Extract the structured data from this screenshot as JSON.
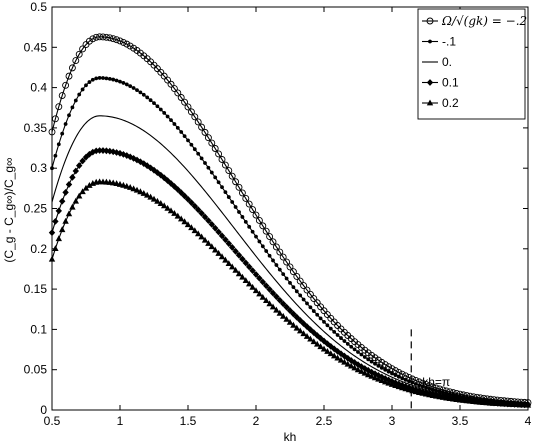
{
  "chart_data": {
    "type": "line",
    "xlabel": "kh",
    "ylabel": "(C_g - C_g∞)/C_g∞",
    "xlim": [
      0.5,
      4
    ],
    "ylim": [
      0,
      0.5
    ],
    "x_ticks": [
      "0.5",
      "1",
      "1.5",
      "2",
      "2.5",
      "3",
      "3.5",
      "4"
    ],
    "y_ticks": [
      "0",
      "0.05",
      "0.1",
      "0.15",
      "0.2",
      "0.25",
      "0.3",
      "0.35",
      "0.4",
      "0.45",
      "0.5"
    ],
    "grid": false,
    "legend_position": "top-right",
    "series": [
      {
        "name": "Ω/√(gk) = −.2",
        "marker": "circle",
        "omega": -0.2,
        "start": 0.345,
        "peak": 0.463,
        "end": 0.006
      },
      {
        "name": "-.1",
        "marker": "dot",
        "omega": -0.1,
        "start": 0.3,
        "peak": 0.412,
        "end": 0.005
      },
      {
        "name": "0.",
        "marker": "none",
        "omega": 0,
        "start": 0.258,
        "peak": 0.365,
        "end": 0.005
      },
      {
        "name": "0.1",
        "marker": "diamond",
        "omega": 0.1,
        "start": 0.22,
        "peak": 0.322,
        "end": 0.004
      },
      {
        "name": "0.2",
        "marker": "triangle",
        "omega": 0.2,
        "start": 0.187,
        "peak": 0.283,
        "end": 0.004
      }
    ],
    "peak_x": 0.85,
    "annotation": {
      "text": "kh=π",
      "x": 3.1416,
      "y_top": 0.1
    }
  }
}
